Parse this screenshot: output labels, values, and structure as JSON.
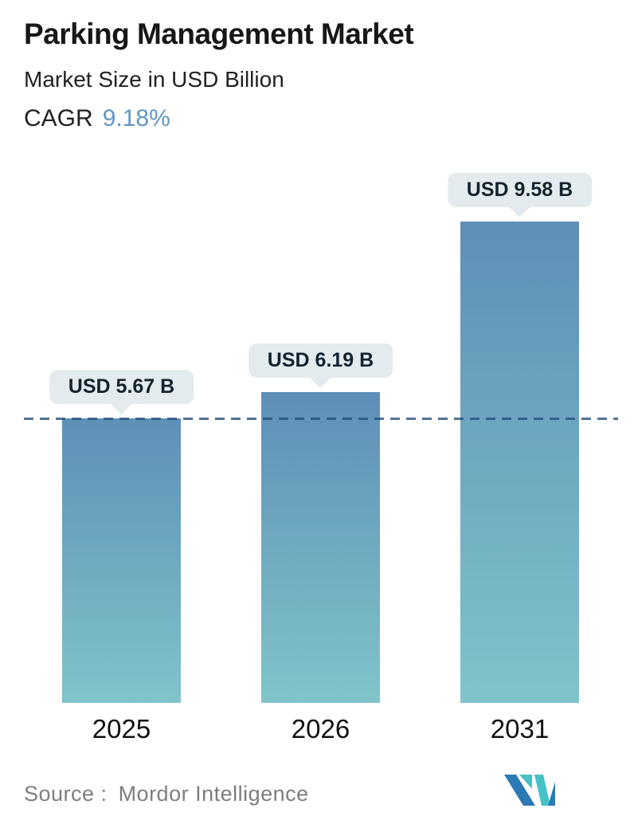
{
  "header": {
    "title": "Parking Management Market",
    "subtitle": "Market Size in USD Billion",
    "cagr_label": "CAGR",
    "cagr_value": "9.18%"
  },
  "chart_data": {
    "type": "bar",
    "title": "Parking Management Market",
    "subtitle": "Market Size in USD Billion",
    "cagr": "9.18%",
    "categories": [
      "2025",
      "2026",
      "2031"
    ],
    "values": [
      5.67,
      6.19,
      9.58
    ],
    "bar_labels": [
      "USD 5.67 B",
      "USD 6.19 B",
      "USD 9.58 B"
    ],
    "unit": "USD Billion",
    "ylim": [
      0,
      10.5
    ],
    "grid": false,
    "legend": false,
    "reference_line_value": 5.67,
    "reference_line_style": "dashed",
    "reference_line_color": "#4a7aa5",
    "bar_gradient_top": "#5e8fb7",
    "bar_gradient_bottom": "#80c4c9",
    "label_pill_background": "#e3ebee",
    "label_text_color": "#13232e"
  },
  "footer": {
    "source_label": "Source :",
    "source_value": "Mordor Intelligence"
  },
  "logo": {
    "name": "mordor-intelligence-logo",
    "blue": "#2b79b5",
    "teal": "#45c2c6"
  }
}
